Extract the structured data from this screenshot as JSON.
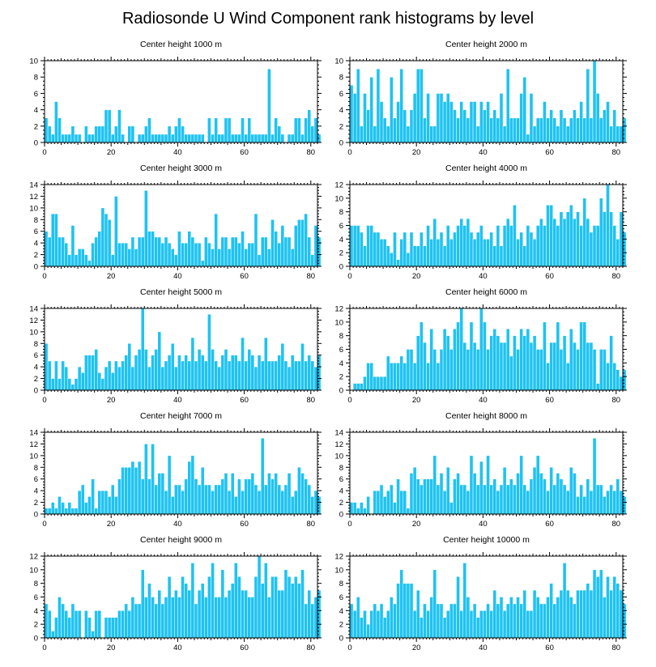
{
  "chart_data": {
    "type": "bar",
    "title": "Radiosonde U Wind Component rank histograms by level",
    "xlim": [
      0,
      82
    ],
    "xticks": [
      0,
      20,
      40,
      60,
      80
    ],
    "bar_color": "#1ec3f2",
    "panels": [
      {
        "title": "Center height 1000 m",
        "ylim": [
          0,
          10
        ],
        "yticks": [
          0,
          2,
          4,
          6,
          8,
          10
        ],
        "values": [
          3,
          2,
          1,
          5,
          3,
          1,
          1,
          1,
          2,
          1,
          1,
          0,
          2,
          1,
          1,
          2,
          2,
          2,
          4,
          4,
          1,
          2,
          4,
          1,
          0,
          2,
          2,
          0,
          1,
          1,
          2,
          3,
          1,
          1,
          1,
          1,
          1,
          2,
          1,
          2,
          3,
          2,
          1,
          1,
          1,
          1,
          1,
          1,
          0,
          3,
          1,
          3,
          1,
          1,
          3,
          3,
          1,
          1,
          1,
          3,
          1,
          3,
          1,
          1,
          1,
          1,
          1,
          9,
          1,
          3,
          2,
          1,
          0,
          1,
          1,
          3,
          3,
          1,
          3,
          4,
          2,
          3,
          1
        ]
      },
      {
        "title": "Center height 2000 m",
        "ylim": [
          0,
          10
        ],
        "yticks": [
          0,
          2,
          4,
          6,
          8,
          10
        ],
        "values": [
          7,
          6,
          9,
          2,
          6,
          4,
          8,
          2,
          9,
          5,
          3,
          2,
          8,
          3,
          5,
          9,
          4,
          2,
          4,
          6,
          9,
          9,
          3,
          6,
          2,
          2,
          6,
          6,
          5,
          6,
          5,
          4,
          3,
          5,
          4,
          3,
          5,
          5,
          2,
          5,
          4,
          5,
          3,
          4,
          3,
          6,
          2,
          9,
          3,
          3,
          3,
          6,
          8,
          1,
          6,
          2,
          3,
          3,
          5,
          3,
          4,
          3,
          2,
          4,
          3,
          2,
          3,
          4,
          3,
          5,
          3,
          9,
          3,
          10,
          6,
          3,
          4,
          5,
          2,
          4,
          2,
          2,
          3
        ]
      },
      {
        "title": "Center height 3000 m",
        "ylim": [
          0,
          14
        ],
        "yticks": [
          0,
          2,
          4,
          6,
          8,
          10,
          12,
          14
        ],
        "values": [
          6,
          5,
          9,
          9,
          5,
          5,
          4,
          2,
          7,
          2,
          3,
          3,
          2,
          1,
          4,
          5,
          6,
          10,
          9,
          8,
          2,
          12,
          4,
          4,
          4,
          3,
          5,
          3,
          5,
          5,
          13,
          6,
          6,
          5,
          5,
          4,
          5,
          4,
          3,
          2,
          6,
          4,
          4,
          6,
          5,
          4,
          4,
          1,
          5,
          4,
          3,
          9,
          3,
          5,
          5,
          3,
          5,
          5,
          4,
          6,
          3,
          4,
          4,
          9,
          2,
          5,
          5,
          3,
          8,
          6,
          4,
          7,
          5,
          5,
          3,
          7,
          8,
          8,
          9,
          5,
          2,
          7,
          5
        ]
      },
      {
        "title": "Center height 4000 m",
        "ylim": [
          0,
          12
        ],
        "yticks": [
          0,
          2,
          4,
          6,
          8,
          10,
          12
        ],
        "values": [
          6,
          6,
          6,
          5,
          3,
          6,
          6,
          5,
          5,
          4,
          4,
          3,
          2,
          5,
          1,
          4,
          5,
          2,
          5,
          3,
          3,
          5,
          3,
          6,
          4,
          7,
          4,
          5,
          3,
          6,
          4,
          5,
          6,
          7,
          6,
          7,
          5,
          4,
          5,
          6,
          4,
          4,
          5,
          3,
          6,
          3,
          6,
          7,
          6,
          9,
          4,
          5,
          3,
          6,
          5,
          4,
          6,
          7,
          6,
          9,
          9,
          7,
          6,
          8,
          7,
          8,
          9,
          7,
          8,
          6,
          10,
          7,
          5,
          6,
          6,
          10,
          8,
          12,
          8,
          6,
          4,
          8,
          5
        ]
      },
      {
        "title": "Center height 5000 m",
        "ylim": [
          0,
          14
        ],
        "yticks": [
          0,
          2,
          4,
          6,
          8,
          10,
          12,
          14
        ],
        "values": [
          8,
          5,
          2,
          5,
          2,
          5,
          4,
          2,
          1,
          2,
          4,
          3,
          6,
          6,
          6,
          7,
          3,
          2,
          4,
          5,
          3,
          5,
          4,
          5,
          6,
          8,
          4,
          6,
          7,
          14,
          7,
          4,
          6,
          7,
          10,
          4,
          5,
          6,
          8,
          4,
          6,
          5,
          6,
          5,
          9,
          5,
          7,
          6,
          5,
          13,
          7,
          5,
          4,
          6,
          7,
          5,
          6,
          6,
          5,
          9,
          5,
          7,
          6,
          4,
          6,
          5,
          9,
          5,
          5,
          5,
          6,
          8,
          5,
          4,
          6,
          5,
          5,
          8,
          5,
          6,
          5,
          4,
          6
        ]
      },
      {
        "title": "Center height 6000 m",
        "ylim": [
          0,
          12
        ],
        "yticks": [
          0,
          2,
          4,
          6,
          8,
          10,
          12
        ],
        "values": [
          0,
          1,
          1,
          1,
          2,
          4,
          4,
          2,
          2,
          2,
          2,
          5,
          4,
          4,
          4,
          5,
          4,
          6,
          6,
          4,
          8,
          10,
          7,
          4,
          9,
          6,
          4,
          6,
          9,
          8,
          6,
          9,
          10,
          12,
          7,
          6,
          10,
          7,
          6,
          12,
          10,
          6,
          8,
          9,
          8,
          7,
          7,
          9,
          5,
          8,
          6,
          9,
          8,
          9,
          7,
          8,
          6,
          6,
          10,
          4,
          7,
          7,
          10,
          6,
          8,
          4,
          9,
          7,
          6,
          10,
          10,
          7,
          7,
          6,
          1,
          6,
          6,
          4,
          8,
          4,
          3,
          2,
          3
        ]
      },
      {
        "title": "Center height 7000 m",
        "ylim": [
          0,
          14
        ],
        "yticks": [
          0,
          2,
          4,
          6,
          8,
          10,
          12,
          14
        ],
        "values": [
          1,
          1,
          2,
          1,
          3,
          2,
          1,
          2,
          1,
          1,
          4,
          5,
          2,
          3,
          6,
          1,
          4,
          4,
          4,
          3,
          5,
          3,
          6,
          8,
          8,
          8,
          9,
          8,
          9,
          6,
          12,
          6,
          12,
          5,
          7,
          7,
          4,
          10,
          3,
          5,
          5,
          4,
          6,
          9,
          10,
          6,
          5,
          8,
          5,
          5,
          4,
          5,
          5,
          6,
          7,
          4,
          7,
          3,
          6,
          4,
          6,
          6,
          7,
          5,
          4,
          13,
          5,
          7,
          6,
          7,
          5,
          4,
          5,
          7,
          3,
          4,
          8,
          7,
          6,
          5,
          3,
          4,
          3
        ]
      },
      {
        "title": "Center height 8000 m",
        "ylim": [
          0,
          14
        ],
        "yticks": [
          0,
          2,
          4,
          6,
          8,
          10,
          12,
          14
        ],
        "values": [
          2,
          2,
          1,
          2,
          1,
          3,
          0,
          4,
          4,
          5,
          3,
          4,
          5,
          2,
          6,
          4,
          4,
          1,
          7,
          8,
          6,
          5,
          6,
          6,
          6,
          10,
          5,
          7,
          4,
          8,
          2,
          6,
          7,
          5,
          5,
          4,
          10,
          7,
          5,
          9,
          5,
          10,
          5,
          6,
          4,
          5,
          8,
          5,
          6,
          5,
          7,
          10,
          5,
          4,
          6,
          8,
          10,
          7,
          6,
          4,
          8,
          5,
          7,
          6,
          5,
          4,
          8,
          7,
          3,
          5,
          3,
          6,
          4,
          13,
          5,
          5,
          3,
          4,
          5,
          4,
          6,
          4,
          3
        ]
      },
      {
        "title": "Center height 9000 m",
        "ylim": [
          0,
          12
        ],
        "yticks": [
          0,
          2,
          4,
          6,
          8,
          10,
          12
        ],
        "values": [
          5,
          4,
          1,
          3,
          6,
          5,
          4,
          3,
          5,
          4,
          4,
          0,
          4,
          3,
          1,
          4,
          4,
          0,
          3,
          3,
          3,
          3,
          4,
          4,
          5,
          4,
          6,
          5,
          5,
          10,
          6,
          8,
          6,
          5,
          7,
          5,
          6,
          9,
          6,
          7,
          6,
          9,
          8,
          7,
          11,
          5,
          7,
          8,
          6,
          9,
          11,
          6,
          6,
          10,
          6,
          7,
          8,
          11,
          9,
          7,
          7,
          6,
          6,
          9,
          12,
          8,
          11,
          6,
          9,
          9,
          7,
          7,
          10,
          9,
          8,
          9,
          8,
          10,
          5,
          7,
          5,
          6,
          7
        ]
      },
      {
        "title": "Center height 10000 m",
        "ylim": [
          0,
          12
        ],
        "yticks": [
          0,
          2,
          4,
          6,
          8,
          10,
          12
        ],
        "values": [
          5,
          4,
          6,
          3,
          4,
          2,
          4,
          5,
          4,
          5,
          3,
          4,
          6,
          5,
          8,
          10,
          8,
          8,
          8,
          4,
          7,
          3,
          5,
          4,
          6,
          10,
          5,
          5,
          3,
          4,
          5,
          5,
          9,
          4,
          11,
          6,
          4,
          5,
          3,
          4,
          4,
          5,
          4,
          7,
          5,
          6,
          4,
          5,
          6,
          5,
          6,
          5,
          7,
          4,
          4,
          7,
          6,
          5,
          5,
          6,
          8,
          5,
          6,
          7,
          11,
          7,
          6,
          5,
          7,
          7,
          7,
          8,
          7,
          10,
          9,
          10,
          6,
          9,
          7,
          9,
          8,
          7,
          5
        ]
      }
    ]
  }
}
